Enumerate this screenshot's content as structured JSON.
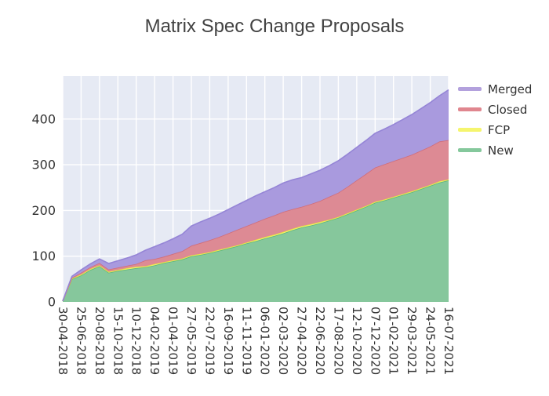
{
  "chart_data": {
    "type": "area",
    "stacked": true,
    "title": "Matrix Spec Change Proposals",
    "plot_bg": "#e6eaf4",
    "grid_color": "#ffffff",
    "axis_text_color": "#333333",
    "title_color": "#424242",
    "legend_position": "right-top-outside",
    "grid": true,
    "yticks": [
      0,
      100,
      200,
      300,
      400
    ],
    "ylim": [
      0,
      494
    ],
    "x_tick_labels": [
      "30-04-2018",
      "25-06-2018",
      "20-08-2018",
      "15-10-2018",
      "10-12-2018",
      "04-02-2019",
      "01-04-2019",
      "27-05-2019",
      "22-07-2019",
      "16-09-2019",
      "11-11-2019",
      "06-01-2020",
      "02-03-2020",
      "27-04-2020",
      "22-06-2020",
      "17-08-2020",
      "12-10-2020",
      "07-12-2020",
      "01-02-2021",
      "29-03-2021",
      "24-05-2021",
      "16-07-2021"
    ],
    "dates": [
      "30-04-2018",
      "28-05-2018",
      "25-06-2018",
      "23-07-2018",
      "20-08-2018",
      "17-09-2018",
      "15-10-2018",
      "12-11-2018",
      "10-12-2018",
      "07-01-2019",
      "04-02-2019",
      "04-03-2019",
      "01-04-2019",
      "29-04-2019",
      "27-05-2019",
      "24-06-2019",
      "22-07-2019",
      "19-08-2019",
      "16-09-2019",
      "14-10-2019",
      "11-11-2019",
      "09-12-2019",
      "06-01-2020",
      "03-02-2020",
      "02-03-2020",
      "30-03-2020",
      "27-04-2020",
      "25-05-2020",
      "22-06-2020",
      "20-07-2020",
      "17-08-2020",
      "14-09-2020",
      "12-10-2020",
      "09-11-2020",
      "07-12-2020",
      "04-01-2021",
      "01-02-2021",
      "01-03-2021",
      "29-03-2021",
      "26-04-2021",
      "24-05-2021",
      "21-06-2021",
      "16-07-2021"
    ],
    "series": [
      {
        "name": "New",
        "fill": "#86c79c",
        "line": "#5ab57d",
        "values": [
          2,
          50,
          58,
          70,
          78,
          64,
          68,
          71,
          74,
          76,
          80,
          85,
          89,
          93,
          100,
          103,
          107,
          112,
          117,
          122,
          128,
          133,
          139,
          144,
          150,
          157,
          163,
          167,
          172,
          178,
          184,
          192,
          200,
          208,
          217,
          222,
          228,
          234,
          240,
          247,
          254,
          261,
          266
        ]
      },
      {
        "name": "FCP",
        "fill": "#f4f170",
        "line": "#e8e23f",
        "values": [
          0,
          1,
          2,
          2,
          2,
          2,
          2,
          3,
          3,
          2,
          3,
          2,
          2,
          2,
          2,
          2,
          2,
          2,
          2,
          2,
          2,
          3,
          3,
          3,
          3,
          3,
          3,
          3,
          3,
          2,
          2,
          2,
          2,
          2,
          2,
          2,
          2,
          2,
          2,
          2,
          2,
          3,
          2
        ]
      },
      {
        "name": "Closed",
        "fill": "#dd8a94",
        "line": "#d06d7a",
        "values": [
          0,
          2,
          4,
          4,
          5,
          5,
          5,
          5,
          6,
          13,
          11,
          12,
          14,
          16,
          21,
          24,
          26,
          28,
          31,
          34,
          36,
          38,
          40,
          42,
          44,
          43,
          42,
          44,
          46,
          50,
          53,
          58,
          64,
          70,
          75,
          77,
          78,
          79,
          80,
          82,
          84,
          87,
          86
        ]
      },
      {
        "name": "Merged",
        "fill": "#a99ade",
        "line": "#9585d6",
        "values": [
          0,
          3,
          6,
          7,
          9,
          13,
          15,
          17,
          20,
          22,
          27,
          30,
          33,
          37,
          43,
          46,
          48,
          50,
          52,
          54,
          56,
          58,
          59,
          61,
          63,
          64,
          64,
          66,
          67,
          68,
          70,
          71,
          72,
          73,
          75,
          77,
          80,
          84,
          88,
          92,
          96,
          100,
          110
        ]
      }
    ],
    "legend": [
      {
        "label": "Merged",
        "color": "#b3a1dd"
      },
      {
        "label": "Closed",
        "color": "#e0868f"
      },
      {
        "label": "FCP",
        "color": "#f5f56e"
      },
      {
        "label": "New",
        "color": "#85c89c"
      }
    ]
  }
}
